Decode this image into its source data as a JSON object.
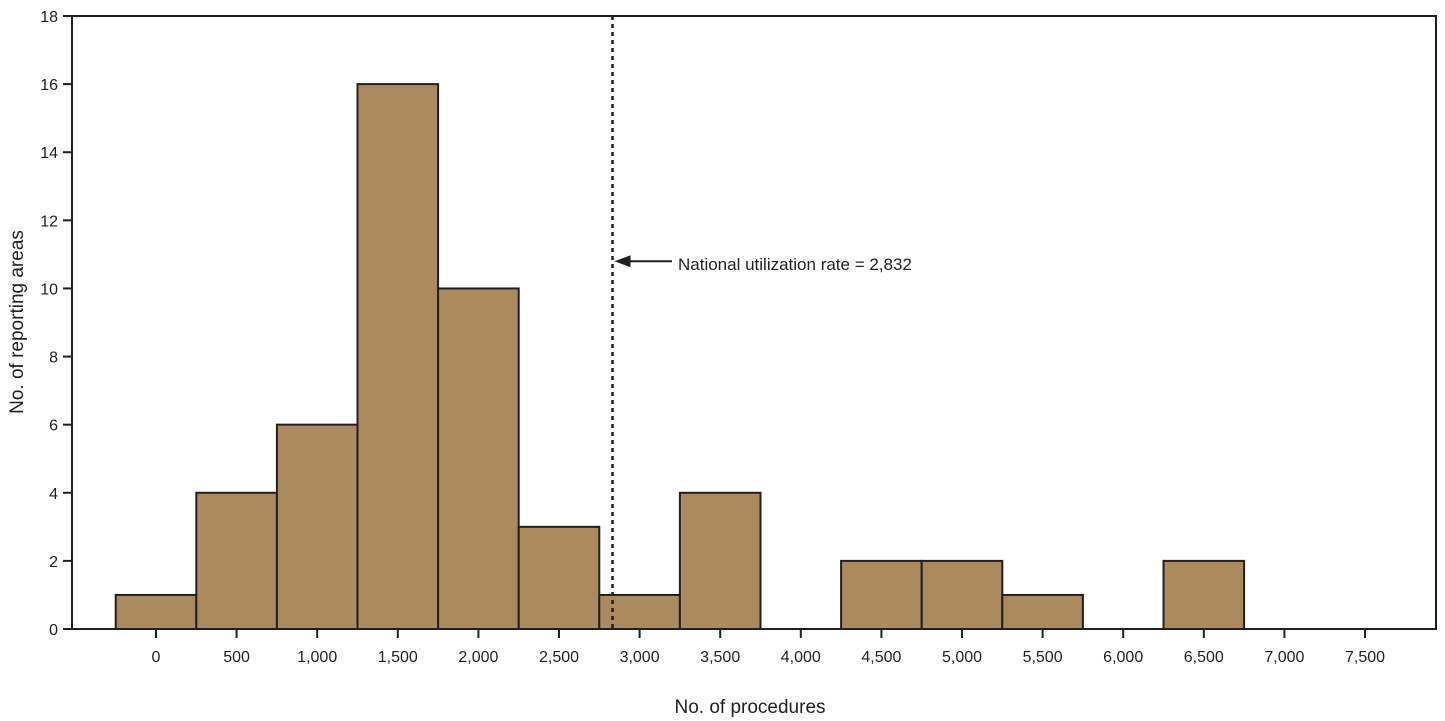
{
  "chart_data": {
    "type": "bar",
    "title": "",
    "xlabel": "No. of procedures",
    "ylabel": "No. of reporting areas",
    "categories": [
      "0",
      "500",
      "1,000",
      "1,500",
      "2,000",
      "2,500",
      "3,000",
      "3,500",
      "4,000",
      "4,500",
      "5,000",
      "5,500",
      "6,000",
      "6,500",
      "7,000",
      "7,500"
    ],
    "x": [
      0,
      500,
      1000,
      1500,
      2000,
      2500,
      3000,
      3500,
      4000,
      4500,
      5000,
      5500,
      6000,
      6500,
      7000,
      7500
    ],
    "bin_width": 500,
    "values": [
      1,
      4,
      6,
      16,
      10,
      3,
      1,
      4,
      0,
      2,
      2,
      1,
      0,
      2,
      0,
      0
    ],
    "ylim": [
      0,
      18
    ],
    "yticks": [
      0,
      2,
      4,
      6,
      8,
      10,
      12,
      14,
      16,
      18
    ],
    "grid": false,
    "bar_color": "#ac8a5f",
    "annotation": {
      "text": "National utilization rate = 2,832",
      "x_value": 2832,
      "y_value": 10.8
    }
  }
}
